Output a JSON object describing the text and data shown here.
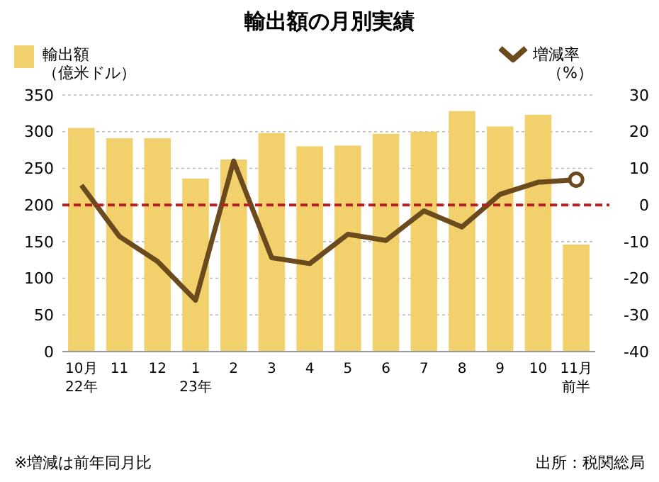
{
  "chart_data": {
    "type": "bar",
    "title": "輸出額の月別実績",
    "categories": [
      "10月22年",
      "11",
      "12",
      "123年",
      "2",
      "3",
      "4",
      "5",
      "6",
      "7",
      "8",
      "9",
      "10",
      "11月前半"
    ],
    "series": [
      {
        "name": "輸出額（億米ドル）",
        "color": "#f2d06b",
        "values": [
          305,
          291,
          291,
          236,
          262,
          298,
          280,
          281,
          297,
          300,
          328,
          307,
          323,
          146
        ]
      },
      {
        "name": "増減率（%）",
        "type": "line",
        "axis": "y2",
        "color": "#6b4a1e",
        "values": [
          5.4,
          -8.6,
          -15.4,
          -26,
          12,
          -14.4,
          -16,
          -8,
          -9.7,
          -1.6,
          -6,
          2.9,
          6.2,
          6.9
        ]
      }
    ],
    "ylim": [
      0,
      350
    ],
    "yticks": [
      0,
      50,
      100,
      150,
      200,
      250,
      300,
      350
    ],
    "y2lim": [
      -40,
      30
    ],
    "y2ticks": [
      -40,
      -30,
      -20,
      -10,
      0,
      10,
      20,
      30
    ],
    "ref_lines": [
      {
        "axis": "y2",
        "value": 0,
        "color": "#b22222",
        "line_style": "dashed"
      }
    ],
    "grid": "y",
    "legend": "top",
    "annotations": [
      "※増減は前年同月比",
      "出所：税関総局"
    ]
  }
}
